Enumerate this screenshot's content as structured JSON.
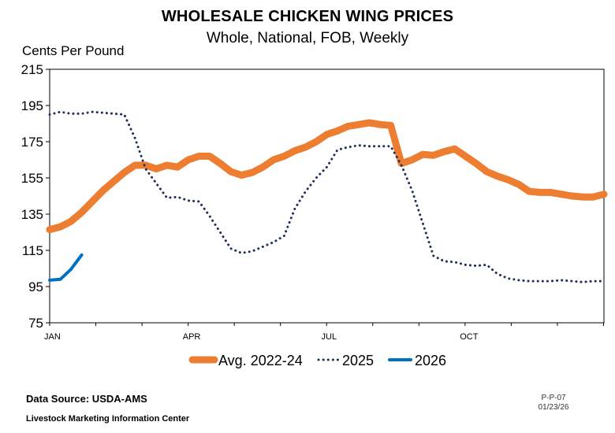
{
  "title": "WHOLESALE CHICKEN WING PRICES",
  "subtitle": "Whole, National, FOB, Weekly",
  "source": "Data Source:  USDA-AMS",
  "organization": "Livestock Marketing Information Center",
  "code": "P-P-07",
  "date": "01/23/26",
  "chart_data": {
    "type": "line",
    "ylabel": "Cents Per Pound",
    "ylim": [
      75,
      215
    ],
    "yticks": [
      75,
      95,
      115,
      135,
      155,
      175,
      195,
      215
    ],
    "xlim": [
      1,
      53
    ],
    "xticks": [
      {
        "label": "JAN",
        "week": 1
      },
      {
        "label": "APR",
        "week": 14
      },
      {
        "label": "JUL",
        "week": 27
      },
      {
        "label": "OCT",
        "week": 40
      }
    ],
    "grid": false,
    "legend_position": "bottom",
    "series": [
      {
        "name": "Avg. 2022-24",
        "style": "solid-thick",
        "color": "#ED7D31",
        "x": [
          1,
          2,
          3,
          4,
          5,
          6,
          7,
          8,
          9,
          10,
          11,
          12,
          13,
          14,
          15,
          16,
          17,
          18,
          19,
          20,
          21,
          22,
          23,
          24,
          25,
          26,
          27,
          28,
          29,
          30,
          31,
          32,
          33,
          34,
          35,
          36,
          37,
          38,
          39,
          40,
          41,
          42,
          43,
          44,
          45,
          46,
          47,
          48,
          49,
          50,
          51,
          52,
          53
        ],
        "values": [
          126.5,
          128,
          131,
          136,
          142,
          148,
          153,
          158,
          162,
          162,
          160,
          162,
          161,
          165,
          167,
          167,
          163,
          158.5,
          156.5,
          158,
          161,
          165,
          167,
          170,
          172,
          175,
          179,
          181,
          183.5,
          184.5,
          185.5,
          184.5,
          184,
          163,
          165,
          168,
          167.5,
          169.5,
          171,
          167,
          163,
          158.5,
          156,
          154,
          151.5,
          147.5,
          147,
          147,
          146,
          145,
          144.5,
          144.5,
          146
        ]
      },
      {
        "name": "2025",
        "style": "dotted",
        "color": "#1F2F5E",
        "x": [
          1,
          2,
          3,
          4,
          5,
          6,
          7,
          8,
          9,
          10,
          11,
          12,
          13,
          14,
          15,
          16,
          17,
          18,
          19,
          20,
          21,
          22,
          23,
          24,
          25,
          26,
          27,
          28,
          29,
          30,
          31,
          32,
          33,
          34,
          35,
          36,
          37,
          38,
          39,
          40,
          41,
          42,
          43,
          44,
          45,
          46,
          47,
          48,
          49,
          50,
          51,
          52,
          53
        ],
        "values": [
          190,
          191.5,
          190.5,
          190.5,
          191.5,
          191,
          190.5,
          190,
          177,
          160,
          152,
          144,
          144.5,
          142.5,
          142,
          134,
          125,
          116,
          113.5,
          114.5,
          117,
          119.5,
          123,
          138,
          147.5,
          155,
          161,
          170.5,
          172,
          173,
          172.5,
          172.5,
          172.5,
          162,
          148,
          130,
          112,
          109,
          108.5,
          107,
          106.5,
          107,
          102,
          99.5,
          98.5,
          98,
          98,
          98,
          98.5,
          98,
          97.5,
          98,
          98
        ]
      },
      {
        "name": "2026",
        "style": "solid",
        "color": "#0070C0",
        "x": [
          1,
          2,
          3,
          4
        ],
        "values": [
          98.5,
          99,
          104.5,
          112.5
        ]
      }
    ]
  }
}
